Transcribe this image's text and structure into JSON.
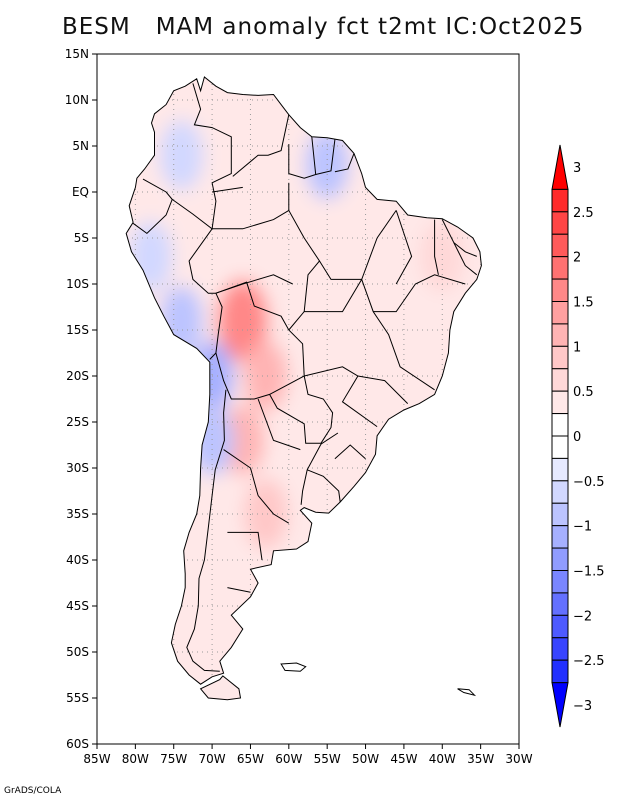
{
  "title": "BESM   MAM anomaly fct t2mt IC:Oct2025",
  "footer": "GrADS/COLA",
  "map": {
    "projection": "lat-lon",
    "lon_range": [
      -85,
      -30
    ],
    "lat_range": [
      -60,
      15
    ],
    "lat_ticks": [
      {
        "value": 15,
        "label": "15N"
      },
      {
        "value": 10,
        "label": "10N"
      },
      {
        "value": 5,
        "label": "5N"
      },
      {
        "value": 0,
        "label": "EQ"
      },
      {
        "value": -5,
        "label": "5S"
      },
      {
        "value": -10,
        "label": "10S"
      },
      {
        "value": -15,
        "label": "15S"
      },
      {
        "value": -20,
        "label": "20S"
      },
      {
        "value": -25,
        "label": "25S"
      },
      {
        "value": -30,
        "label": "30S"
      },
      {
        "value": -35,
        "label": "35S"
      },
      {
        "value": -40,
        "label": "40S"
      },
      {
        "value": -45,
        "label": "45S"
      },
      {
        "value": -50,
        "label": "50S"
      },
      {
        "value": -55,
        "label": "55S"
      },
      {
        "value": -60,
        "label": "60S"
      }
    ],
    "lon_ticks": [
      {
        "value": -85,
        "label": "85W"
      },
      {
        "value": -80,
        "label": "80W"
      },
      {
        "value": -75,
        "label": "75W"
      },
      {
        "value": -70,
        "label": "70W"
      },
      {
        "value": -65,
        "label": "65W"
      },
      {
        "value": -60,
        "label": "60W"
      },
      {
        "value": -55,
        "label": "55W"
      },
      {
        "value": -50,
        "label": "50W"
      },
      {
        "value": -45,
        "label": "45W"
      },
      {
        "value": -40,
        "label": "40W"
      },
      {
        "value": -35,
        "label": "35W"
      },
      {
        "value": -30,
        "label": "30W"
      }
    ],
    "gridlines": "dotted"
  },
  "colorbar": {
    "labels": [
      {
        "value": 3,
        "label": "3"
      },
      {
        "value": 2.5,
        "label": "2.5"
      },
      {
        "value": 2,
        "label": "2"
      },
      {
        "value": 1.5,
        "label": "1.5"
      },
      {
        "value": 1,
        "label": "1"
      },
      {
        "value": 0.5,
        "label": "0.5"
      },
      {
        "value": 0,
        "label": "0"
      },
      {
        "value": -0.5,
        "label": "-0.5"
      },
      {
        "value": -1,
        "label": "-1"
      },
      {
        "value": -1.5,
        "label": "-1.5"
      },
      {
        "value": -2,
        "label": "-2"
      },
      {
        "value": -2.5,
        "label": "-2.5"
      },
      {
        "value": -3,
        "label": "-3"
      }
    ],
    "bins": [
      {
        "from": 2.75,
        "to": 3,
        "color": "#ff0a0a"
      },
      {
        "from": 2.5,
        "to": 2.75,
        "color": "#ff2a2a"
      },
      {
        "from": 2.25,
        "to": 2.5,
        "color": "#ff4545"
      },
      {
        "from": 2,
        "to": 2.25,
        "color": "#ff5a5a"
      },
      {
        "from": 1.75,
        "to": 2,
        "color": "#ff7272"
      },
      {
        "from": 1.5,
        "to": 1.75,
        "color": "#ff8888"
      },
      {
        "from": 1.25,
        "to": 1.5,
        "color": "#ffa0a0"
      },
      {
        "from": 1,
        "to": 1.25,
        "color": "#ffb4b4"
      },
      {
        "from": 0.75,
        "to": 1,
        "color": "#ffc8c8"
      },
      {
        "from": 0.5,
        "to": 0.75,
        "color": "#ffd8d8"
      },
      {
        "from": 0.25,
        "to": 0.5,
        "color": "#ffe8e8"
      },
      {
        "from": 0,
        "to": 0.25,
        "color": "#ffffff"
      },
      {
        "from": -0.25,
        "to": 0,
        "color": "#ffffff"
      },
      {
        "from": -0.5,
        "to": -0.25,
        "color": "#e6e9ff"
      },
      {
        "from": -0.75,
        "to": -0.5,
        "color": "#d2d8ff"
      },
      {
        "from": -1,
        "to": -0.75,
        "color": "#bcc4ff"
      },
      {
        "from": -1.25,
        "to": -1,
        "color": "#a6b0ff"
      },
      {
        "from": -1.5,
        "to": -1.25,
        "color": "#909cff"
      },
      {
        "from": -1.75,
        "to": -1.5,
        "color": "#7a86ff"
      },
      {
        "from": -2,
        "to": -1.75,
        "color": "#6470ff"
      },
      {
        "from": -2.25,
        "to": -2,
        "color": "#4e5aff"
      },
      {
        "from": -2.5,
        "to": -2.25,
        "color": "#3844ff"
      },
      {
        "from": -2.75,
        "to": -2.5,
        "color": "#2230ff"
      },
      {
        "from": -3,
        "to": -2.75,
        "color": "#0a14ff"
      }
    ],
    "max_arrow_color": "#ff0000",
    "min_arrow_color": "#0000ff"
  },
  "anomalies": [
    {
      "name": "andes-central-warm",
      "lon": -66,
      "lat": -14,
      "value": 1.6
    },
    {
      "name": "bolivia-warm",
      "lon": -63,
      "lat": -20,
      "value": 1.0
    },
    {
      "name": "andes-south-warm",
      "lon": -66,
      "lat": -27,
      "value": 1.0
    },
    {
      "name": "argentina-warm",
      "lon": -63,
      "lat": -35,
      "value": 0.8
    },
    {
      "name": "northeast-brazil-warm",
      "lon": -40,
      "lat": -7,
      "value": 0.6
    },
    {
      "name": "amazon-north-cool",
      "lon": -55,
      "lat": 3,
      "value": -1.0
    },
    {
      "name": "peru-coast-cool",
      "lon": -74,
      "lat": -14,
      "value": -1.0
    },
    {
      "name": "chile-north-cool",
      "lon": -70,
      "lat": -20,
      "value": -1.1
    },
    {
      "name": "chile-central-cool",
      "lon": -70,
      "lat": -27,
      "value": -0.9
    },
    {
      "name": "colombia-cool",
      "lon": -74,
      "lat": 4,
      "value": -0.6
    },
    {
      "name": "ecuador-cool",
      "lon": -78,
      "lat": -7,
      "value": -0.6
    }
  ]
}
